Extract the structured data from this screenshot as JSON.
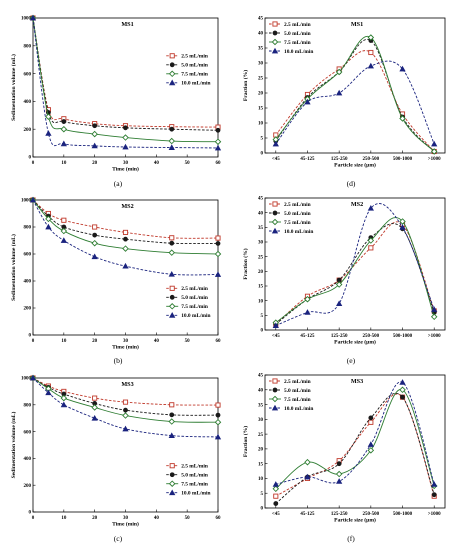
{
  "figure": {
    "series_names": [
      "2.5 mL/min",
      "5.0 mL/min",
      "7.5 mL/min",
      "10.0 mL/min"
    ],
    "series_colors": [
      "#c0392b",
      "#1a1a1a",
      "#2e7d32",
      "#1a237e"
    ],
    "series_markers": [
      "square-open",
      "circle",
      "diamond-open",
      "triangle"
    ],
    "series_dashes": [
      "dashed",
      "dashed",
      "solid",
      "dashed"
    ]
  },
  "chart_data": [
    {
      "id": "a",
      "caption": "(a)",
      "type": "line",
      "title": "MS1",
      "xlabel": "Time (min)",
      "ylabel": "Sedimentation volume (mL)",
      "xlim": [
        0,
        60
      ],
      "ylim": [
        0,
        1000
      ],
      "xticks": [
        0,
        10,
        20,
        30,
        40,
        50,
        60
      ],
      "yticks": [
        0,
        200,
        400,
        600,
        800,
        1000
      ],
      "legend_position": "center-right",
      "x": [
        0,
        5,
        10,
        20,
        30,
        45,
        60
      ],
      "series": [
        {
          "name": "2.5 mL/min",
          "values": [
            1000,
            340,
            275,
            240,
            225,
            218,
            215
          ]
        },
        {
          "name": "5.0 mL/min",
          "values": [
            1000,
            320,
            255,
            225,
            210,
            200,
            192
          ]
        },
        {
          "name": "7.5 mL/min",
          "values": [
            1000,
            290,
            200,
            165,
            140,
            115,
            110
          ]
        },
        {
          "name": "10.0 mL/min",
          "values": [
            1000,
            170,
            95,
            80,
            72,
            68,
            65
          ]
        }
      ]
    },
    {
      "id": "d",
      "caption": "(d)",
      "type": "line",
      "title": "MS1",
      "xlabel": "Particle size (μm)",
      "ylabel": "Fraction (%)",
      "ylim": [
        0,
        45
      ],
      "yticks": [
        0,
        5,
        10,
        15,
        20,
        25,
        30,
        35,
        40,
        45
      ],
      "legend_position": "top-left",
      "categories": [
        "<45",
        "45-125",
        "125-250",
        "250-500",
        "500-1000",
        ">1000"
      ],
      "series": [
        {
          "name": "2.5 mL/min",
          "values": [
            6,
            19.5,
            28,
            33.5,
            13,
            0.5
          ]
        },
        {
          "name": "5.0 mL/min",
          "values": [
            4,
            18.5,
            27,
            37.5,
            12,
            0.5
          ]
        },
        {
          "name": "7.5 mL/min",
          "values": [
            4.5,
            18,
            27,
            38.5,
            11.5,
            0.5
          ]
        },
        {
          "name": "10.0 mL/min",
          "values": [
            3,
            17,
            20,
            29,
            28,
            3
          ]
        }
      ]
    },
    {
      "id": "b",
      "caption": "(b)",
      "type": "line",
      "title": "MS2",
      "xlabel": "Time (min)",
      "ylabel": "Sedimentation volume (mL)",
      "xlim": [
        0,
        60
      ],
      "ylim": [
        0,
        1000
      ],
      "xticks": [
        0,
        10,
        20,
        30,
        40,
        50,
        60
      ],
      "yticks": [
        0,
        200,
        400,
        600,
        800,
        1000
      ],
      "legend_position": "bottom-right",
      "x": [
        0,
        5,
        10,
        20,
        30,
        45,
        60
      ],
      "series": [
        {
          "name": "2.5 mL/min",
          "values": [
            1000,
            900,
            850,
            800,
            760,
            720,
            718
          ]
        },
        {
          "name": "5.0 mL/min",
          "values": [
            1000,
            880,
            800,
            740,
            710,
            680,
            678
          ]
        },
        {
          "name": "7.5 mL/min",
          "values": [
            1000,
            860,
            770,
            680,
            640,
            610,
            600
          ]
        },
        {
          "name": "10.0 mL/min",
          "values": [
            1000,
            800,
            700,
            580,
            510,
            450,
            448
          ]
        }
      ]
    },
    {
      "id": "e",
      "caption": "(e)",
      "type": "line",
      "title": "MS2",
      "xlabel": "Particle size (μm)",
      "ylabel": "Fraction (%)",
      "ylim": [
        0,
        45
      ],
      "yticks": [
        0,
        5,
        10,
        15,
        20,
        25,
        30,
        35,
        40,
        45
      ],
      "legend_position": "top-left",
      "categories": [
        "<45",
        "45-125",
        "125-250",
        "250-500",
        "500-1000",
        ">1000"
      ],
      "series": [
        {
          "name": "2.5 mL/min",
          "values": [
            2,
            11.5,
            17,
            28,
            36,
            6.5
          ]
        },
        {
          "name": "5.0 mL/min",
          "values": [
            2,
            10.5,
            17,
            31.5,
            34.5,
            6
          ]
        },
        {
          "name": "7.5 mL/min",
          "values": [
            2.5,
            10.5,
            15.5,
            30.5,
            37,
            4.5
          ]
        },
        {
          "name": "10.0 mL/min",
          "values": [
            1.5,
            6,
            9,
            41.5,
            35,
            7
          ]
        }
      ]
    },
    {
      "id": "c",
      "caption": "(c)",
      "type": "line",
      "title": "MS3",
      "xlabel": "Time (min)",
      "ylabel": "Sedimentation volume (mL)",
      "xlim": [
        0,
        60
      ],
      "ylim": [
        0,
        1000
      ],
      "xticks": [
        0,
        10,
        20,
        30,
        40,
        50,
        60
      ],
      "yticks": [
        0,
        200,
        400,
        600,
        800,
        1000
      ],
      "legend_position": "bottom-right",
      "x": [
        0,
        5,
        10,
        20,
        30,
        45,
        60
      ],
      "series": [
        {
          "name": "2.5 mL/min",
          "values": [
            1000,
            940,
            900,
            850,
            820,
            800,
            798
          ]
        },
        {
          "name": "5.0 mL/min",
          "values": [
            1000,
            930,
            880,
            810,
            760,
            725,
            723
          ]
        },
        {
          "name": "7.5 mL/min",
          "values": [
            1000,
            920,
            850,
            780,
            720,
            675,
            670
          ]
        },
        {
          "name": "10.0 mL/min",
          "values": [
            1000,
            890,
            800,
            700,
            620,
            570,
            560
          ]
        }
      ]
    },
    {
      "id": "f",
      "caption": "(f)",
      "type": "line",
      "title": "MS3",
      "xlabel": "Particle size (μm)",
      "ylabel": "Fraction (%)",
      "ylim": [
        0,
        45
      ],
      "yticks": [
        0,
        5,
        10,
        15,
        20,
        25,
        30,
        35,
        40,
        45
      ],
      "legend_position": "top-left",
      "categories": [
        "<45",
        "45-125",
        "125-250",
        "250-500",
        "500-1000",
        ">1000"
      ],
      "series": [
        {
          "name": "2.5 mL/min",
          "values": [
            4,
            10,
            16,
            29,
            37.5,
            4
          ]
        },
        {
          "name": "5.0 mL/min",
          "values": [
            1.5,
            10.5,
            15,
            30.5,
            37.5,
            4.5
          ]
        },
        {
          "name": "7.5 mL/min",
          "values": [
            6.5,
            15.5,
            11.5,
            19.5,
            40,
            7.5
          ]
        },
        {
          "name": "10.0 mL/min",
          "values": [
            8,
            10.5,
            9,
            21.5,
            42.5,
            8
          ]
        }
      ]
    }
  ]
}
